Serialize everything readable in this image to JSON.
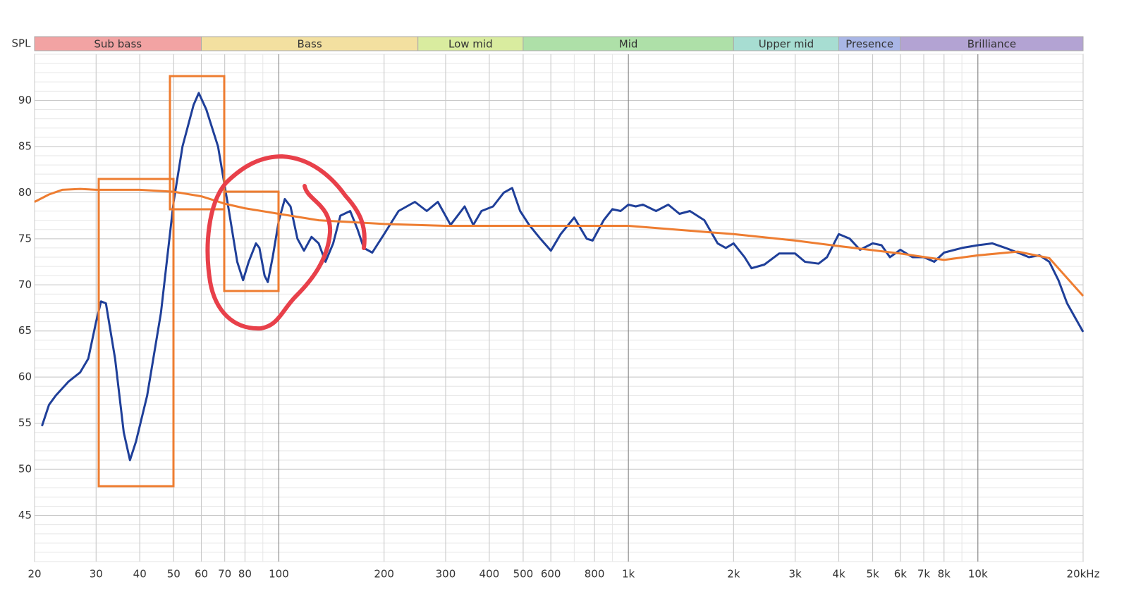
{
  "chart_data": {
    "type": "line",
    "y_label": "SPL",
    "log_x": true,
    "grid": true,
    "xlim": [
      20,
      20000
    ],
    "ylim": [
      40,
      95
    ],
    "yticks": [
      45,
      50,
      55,
      60,
      65,
      70,
      75,
      80,
      85,
      90
    ],
    "xticks": [
      20,
      30,
      40,
      50,
      60,
      70,
      80,
      100,
      200,
      300,
      400,
      500,
      600,
      800,
      {
        "value": 1000,
        "label": "1k"
      },
      {
        "value": 2000,
        "label": "2k"
      },
      {
        "value": 3000,
        "label": "3k"
      },
      {
        "value": 4000,
        "label": "4k"
      },
      {
        "value": 5000,
        "label": "5k"
      },
      {
        "value": 6000,
        "label": "6k"
      },
      {
        "value": 7000,
        "label": "7k"
      },
      {
        "value": 8000,
        "label": "8k"
      },
      {
        "value": 10000,
        "label": "10k"
      },
      {
        "value": 20000,
        "label": "20kHz"
      }
    ],
    "bands": [
      {
        "name": "Sub bass",
        "from": 20,
        "to": 60,
        "color": "#f2a3a3"
      },
      {
        "name": "Bass",
        "from": 60,
        "to": 250,
        "color": "#f3e0a0"
      },
      {
        "name": "Low mid",
        "from": 250,
        "to": 500,
        "color": "#d9ec9f"
      },
      {
        "name": "Mid",
        "from": 500,
        "to": 2000,
        "color": "#aee0a8"
      },
      {
        "name": "Upper mid",
        "from": 2000,
        "to": 4000,
        "color": "#a7ddd2"
      },
      {
        "name": "Presence",
        "from": 4000,
        "to": 6000,
        "color": "#a9b6e6"
      },
      {
        "name": "Brilliance",
        "from": 6000,
        "to": 20000,
        "color": "#b3a3d3"
      }
    ],
    "series": [
      {
        "color": "#1f3f99",
        "x": [
          21,
          22,
          23,
          25,
          27,
          28.5,
          30,
          31,
          32,
          34,
          36,
          37.5,
          39,
          42,
          46,
          50,
          53,
          57,
          59,
          62,
          67,
          72,
          76,
          79,
          82,
          86,
          88,
          91,
          93,
          96,
          100,
          104,
          108,
          113,
          118,
          124,
          130,
          136,
          143,
          150,
          160,
          168,
          175,
          185,
          200,
          220,
          245,
          265,
          285,
          310,
          340,
          360,
          380,
          410,
          440,
          465,
          490,
          520,
          560,
          600,
          640,
          700,
          760,
          790,
          850,
          900,
          950,
          1000,
          1050,
          1100,
          1200,
          1300,
          1400,
          1500,
          1650,
          1800,
          1900,
          2000,
          2150,
          2250,
          2450,
          2700,
          3000,
          3200,
          3500,
          3700,
          4000,
          4300,
          4600,
          5000,
          5300,
          5600,
          6000,
          6500,
          7000,
          7500,
          8000,
          9000,
          10000,
          11000,
          12000,
          13000,
          14000,
          15000,
          16000,
          17000,
          18000,
          20000
        ],
        "values": [
          54.7,
          57,
          58,
          59.5,
          60.5,
          62,
          66,
          68.2,
          68,
          62,
          54,
          51,
          53,
          58,
          67,
          79,
          85,
          89.5,
          90.8,
          89,
          85,
          78,
          72.5,
          70.5,
          72.5,
          74.5,
          74,
          71,
          70.3,
          73,
          77,
          79.3,
          78.5,
          75,
          73.7,
          75.2,
          74.5,
          72.5,
          74.5,
          77.5,
          78,
          76,
          74,
          73.5,
          75.5,
          78,
          79,
          78,
          79,
          76.5,
          78.5,
          76.5,
          78,
          78.5,
          80,
          80.5,
          78,
          76.5,
          75,
          73.7,
          75.5,
          77.3,
          75,
          74.8,
          77,
          78.2,
          78,
          78.7,
          78.5,
          78.7,
          78,
          78.7,
          77.7,
          78,
          77,
          74.5,
          74,
          74.5,
          73,
          71.8,
          72.2,
          73.4,
          73.4,
          72.5,
          72.3,
          73,
          75.5,
          75,
          73.8,
          74.5,
          74.3,
          73,
          73.8,
          73,
          73,
          72.5,
          73.5,
          74,
          74.3,
          74.5,
          74,
          73.5,
          73,
          73.2,
          72.5,
          70.5,
          68,
          64.9
        ]
      },
      {
        "color": "#ee7d31",
        "x": [
          20,
          22,
          24,
          27,
          30,
          40,
          50,
          60,
          70,
          80,
          100,
          130,
          200,
          300,
          500,
          1000,
          2000,
          3000,
          4000,
          6000,
          8000,
          10000,
          13000,
          16000,
          20000
        ],
        "values": [
          79,
          79.8,
          80.3,
          80.4,
          80.3,
          80.3,
          80.1,
          79.6,
          78.8,
          78.3,
          77.7,
          77,
          76.6,
          76.4,
          76.4,
          76.4,
          75.5,
          74.8,
          74.2,
          73.4,
          72.7,
          73.2,
          73.6,
          72.9,
          68.8
        ]
      }
    ]
  }
}
